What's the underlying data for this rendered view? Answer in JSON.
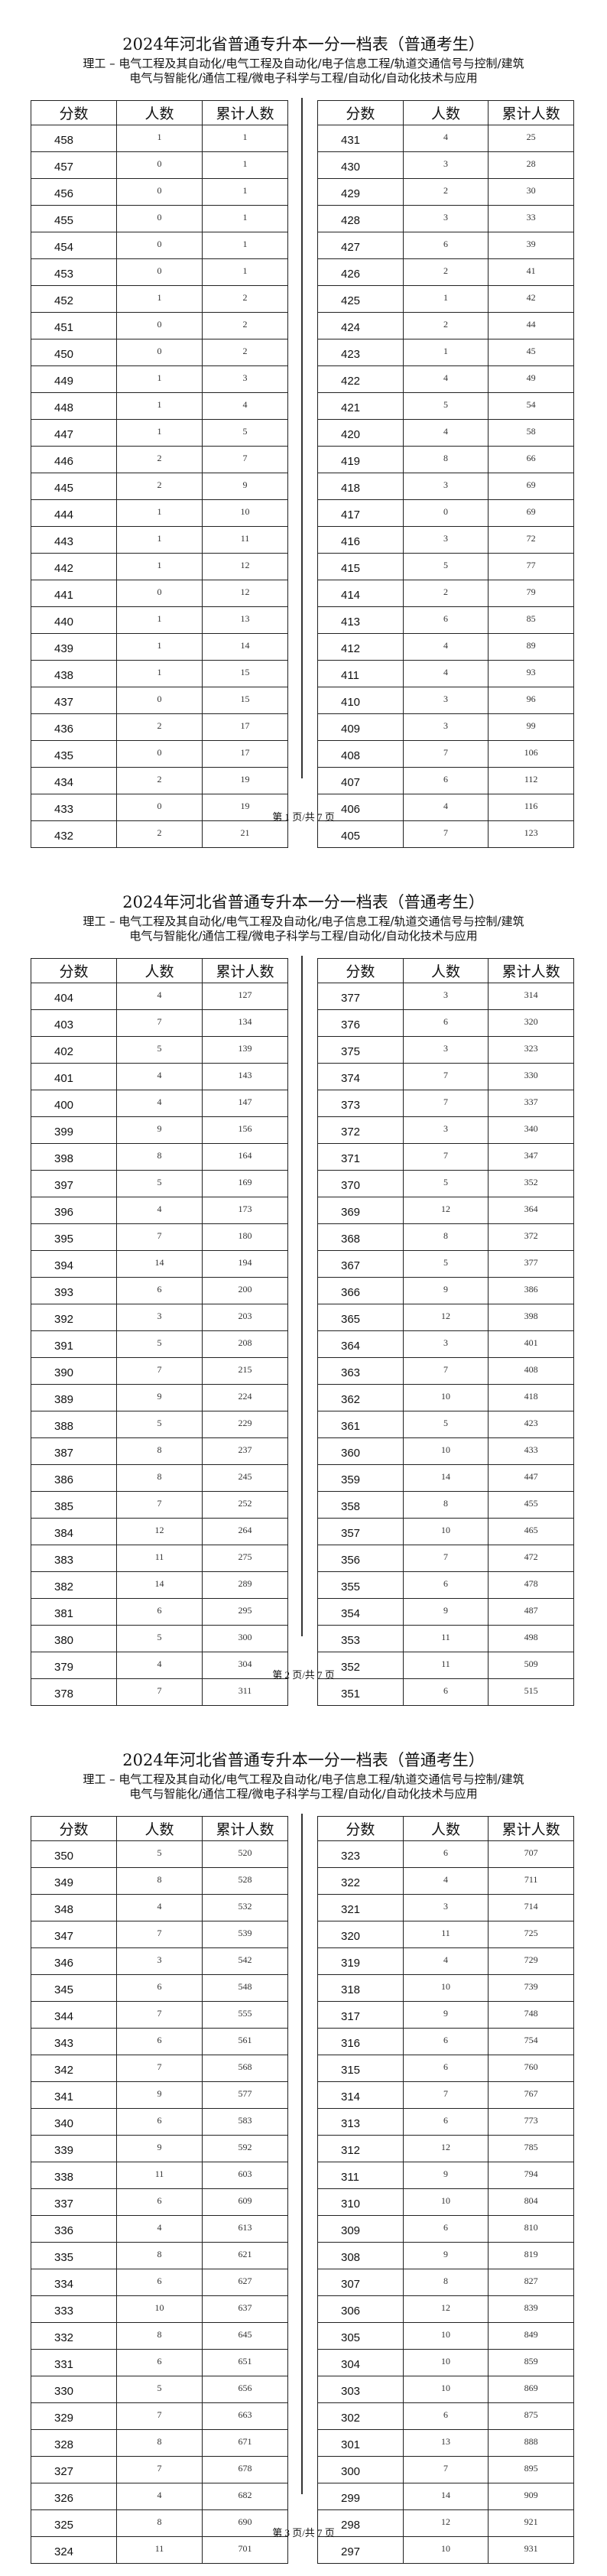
{
  "document": {
    "title": "2024年河北省普通专升本一分一档表（普通考生）",
    "subtitle_line1": "理工 – 电气工程及其自动化/电气工程及自动化/电子信息工程/轨道交通信号与控制/建筑",
    "subtitle_line2": "电气与智能化/通信工程/微电子科学与工程/自动化/自动化技术与应用",
    "columns": [
      "分数",
      "人数",
      "累计人数"
    ]
  },
  "pages": [
    {
      "footer": "第 1 页/共 7 页",
      "left": [
        [
          458,
          1,
          1
        ],
        [
          457,
          0,
          1
        ],
        [
          456,
          0,
          1
        ],
        [
          455,
          0,
          1
        ],
        [
          454,
          0,
          1
        ],
        [
          453,
          0,
          1
        ],
        [
          452,
          1,
          2
        ],
        [
          451,
          0,
          2
        ],
        [
          450,
          0,
          2
        ],
        [
          449,
          1,
          3
        ],
        [
          448,
          1,
          4
        ],
        [
          447,
          1,
          5
        ],
        [
          446,
          2,
          7
        ],
        [
          445,
          2,
          9
        ],
        [
          444,
          1,
          10
        ],
        [
          443,
          1,
          11
        ],
        [
          442,
          1,
          12
        ],
        [
          441,
          0,
          12
        ],
        [
          440,
          1,
          13
        ],
        [
          439,
          1,
          14
        ],
        [
          438,
          1,
          15
        ],
        [
          437,
          0,
          15
        ],
        [
          436,
          2,
          17
        ],
        [
          435,
          0,
          17
        ],
        [
          434,
          2,
          19
        ],
        [
          433,
          0,
          19
        ],
        [
          432,
          2,
          21
        ]
      ],
      "right": [
        [
          431,
          4,
          25
        ],
        [
          430,
          3,
          28
        ],
        [
          429,
          2,
          30
        ],
        [
          428,
          3,
          33
        ],
        [
          427,
          6,
          39
        ],
        [
          426,
          2,
          41
        ],
        [
          425,
          1,
          42
        ],
        [
          424,
          2,
          44
        ],
        [
          423,
          1,
          45
        ],
        [
          422,
          4,
          49
        ],
        [
          421,
          5,
          54
        ],
        [
          420,
          4,
          58
        ],
        [
          419,
          8,
          66
        ],
        [
          418,
          3,
          69
        ],
        [
          417,
          0,
          69
        ],
        [
          416,
          3,
          72
        ],
        [
          415,
          5,
          77
        ],
        [
          414,
          2,
          79
        ],
        [
          413,
          6,
          85
        ],
        [
          412,
          4,
          89
        ],
        [
          411,
          4,
          93
        ],
        [
          410,
          3,
          96
        ],
        [
          409,
          3,
          99
        ],
        [
          408,
          7,
          106
        ],
        [
          407,
          6,
          112
        ],
        [
          406,
          4,
          116
        ],
        [
          405,
          7,
          123
        ]
      ]
    },
    {
      "footer": "第 2 页/共 7 页",
      "left": [
        [
          404,
          4,
          127
        ],
        [
          403,
          7,
          134
        ],
        [
          402,
          5,
          139
        ],
        [
          401,
          4,
          143
        ],
        [
          400,
          4,
          147
        ],
        [
          399,
          9,
          156
        ],
        [
          398,
          8,
          164
        ],
        [
          397,
          5,
          169
        ],
        [
          396,
          4,
          173
        ],
        [
          395,
          7,
          180
        ],
        [
          394,
          14,
          194
        ],
        [
          393,
          6,
          200
        ],
        [
          392,
          3,
          203
        ],
        [
          391,
          5,
          208
        ],
        [
          390,
          7,
          215
        ],
        [
          389,
          9,
          224
        ],
        [
          388,
          5,
          229
        ],
        [
          387,
          8,
          237
        ],
        [
          386,
          8,
          245
        ],
        [
          385,
          7,
          252
        ],
        [
          384,
          12,
          264
        ],
        [
          383,
          11,
          275
        ],
        [
          382,
          14,
          289
        ],
        [
          381,
          6,
          295
        ],
        [
          380,
          5,
          300
        ],
        [
          379,
          4,
          304
        ],
        [
          378,
          7,
          311
        ]
      ],
      "right": [
        [
          377,
          3,
          314
        ],
        [
          376,
          6,
          320
        ],
        [
          375,
          3,
          323
        ],
        [
          374,
          7,
          330
        ],
        [
          373,
          7,
          337
        ],
        [
          372,
          3,
          340
        ],
        [
          371,
          7,
          347
        ],
        [
          370,
          5,
          352
        ],
        [
          369,
          12,
          364
        ],
        [
          368,
          8,
          372
        ],
        [
          367,
          5,
          377
        ],
        [
          366,
          9,
          386
        ],
        [
          365,
          12,
          398
        ],
        [
          364,
          3,
          401
        ],
        [
          363,
          7,
          408
        ],
        [
          362,
          10,
          418
        ],
        [
          361,
          5,
          423
        ],
        [
          360,
          10,
          433
        ],
        [
          359,
          14,
          447
        ],
        [
          358,
          8,
          455
        ],
        [
          357,
          10,
          465
        ],
        [
          356,
          7,
          472
        ],
        [
          355,
          6,
          478
        ],
        [
          354,
          9,
          487
        ],
        [
          353,
          11,
          498
        ],
        [
          352,
          11,
          509
        ],
        [
          351,
          6,
          515
        ]
      ]
    },
    {
      "footer": "第 3 页/共 7 页",
      "left": [
        [
          350,
          5,
          520
        ],
        [
          349,
          8,
          528
        ],
        [
          348,
          4,
          532
        ],
        [
          347,
          7,
          539
        ],
        [
          346,
          3,
          542
        ],
        [
          345,
          6,
          548
        ],
        [
          344,
          7,
          555
        ],
        [
          343,
          6,
          561
        ],
        [
          342,
          7,
          568
        ],
        [
          341,
          9,
          577
        ],
        [
          340,
          6,
          583
        ],
        [
          339,
          9,
          592
        ],
        [
          338,
          11,
          603
        ],
        [
          337,
          6,
          609
        ],
        [
          336,
          4,
          613
        ],
        [
          335,
          8,
          621
        ],
        [
          334,
          6,
          627
        ],
        [
          333,
          10,
          637
        ],
        [
          332,
          8,
          645
        ],
        [
          331,
          6,
          651
        ],
        [
          330,
          5,
          656
        ],
        [
          329,
          7,
          663
        ],
        [
          328,
          8,
          671
        ],
        [
          327,
          7,
          678
        ],
        [
          326,
          4,
          682
        ],
        [
          325,
          8,
          690
        ],
        [
          324,
          11,
          701
        ]
      ],
      "right": [
        [
          323,
          6,
          707
        ],
        [
          322,
          4,
          711
        ],
        [
          321,
          3,
          714
        ],
        [
          320,
          11,
          725
        ],
        [
          319,
          4,
          729
        ],
        [
          318,
          10,
          739
        ],
        [
          317,
          9,
          748
        ],
        [
          316,
          6,
          754
        ],
        [
          315,
          6,
          760
        ],
        [
          314,
          7,
          767
        ],
        [
          313,
          6,
          773
        ],
        [
          312,
          12,
          785
        ],
        [
          311,
          9,
          794
        ],
        [
          310,
          10,
          804
        ],
        [
          309,
          6,
          810
        ],
        [
          308,
          9,
          819
        ],
        [
          307,
          8,
          827
        ],
        [
          306,
          12,
          839
        ],
        [
          305,
          10,
          849
        ],
        [
          304,
          10,
          859
        ],
        [
          303,
          10,
          869
        ],
        [
          302,
          6,
          875
        ],
        [
          301,
          13,
          888
        ],
        [
          300,
          7,
          895
        ],
        [
          299,
          14,
          909
        ],
        [
          298,
          12,
          921
        ],
        [
          297,
          10,
          931
        ]
      ]
    }
  ]
}
